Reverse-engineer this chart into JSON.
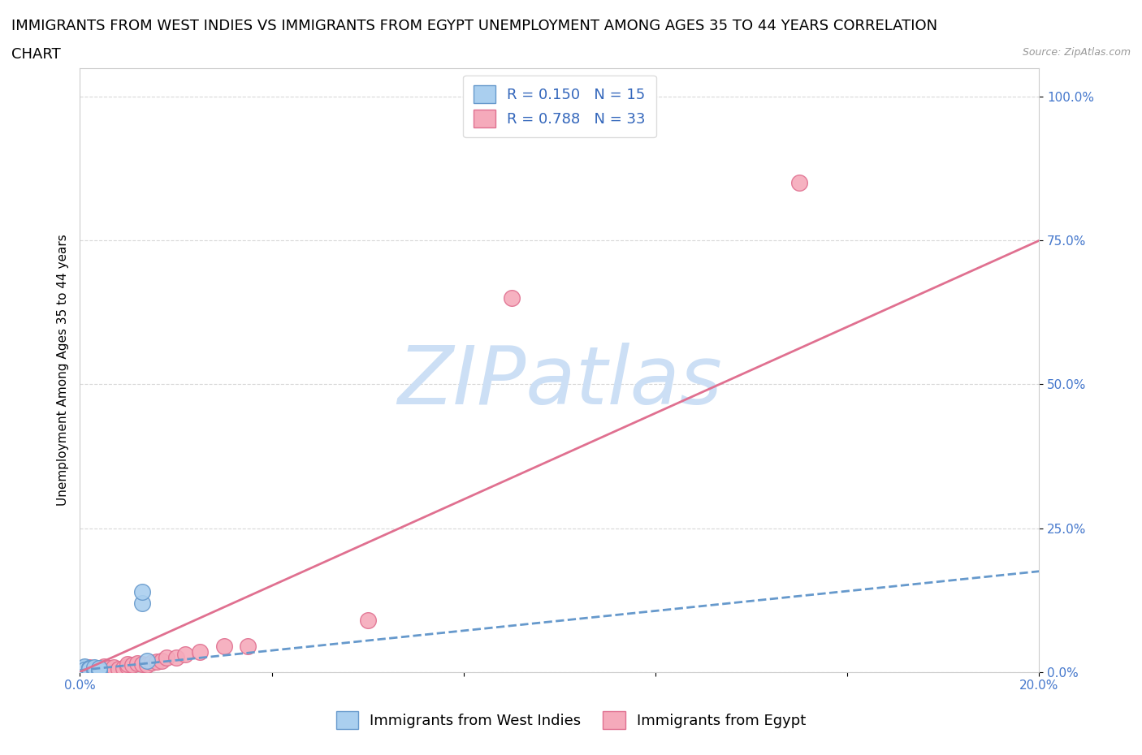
{
  "title_line1": "IMMIGRANTS FROM WEST INDIES VS IMMIGRANTS FROM EGYPT UNEMPLOYMENT AMONG AGES 35 TO 44 YEARS CORRELATION",
  "title_line2": "CHART",
  "source_text": "Source: ZipAtlas.com",
  "ylabel": "Unemployment Among Ages 35 to 44 years",
  "xlim": [
    0.0,
    0.2
  ],
  "ylim": [
    0.0,
    1.05
  ],
  "xticks": [
    0.0,
    0.04,
    0.08,
    0.12,
    0.16,
    0.2
  ],
  "yticks": [
    0.0,
    0.25,
    0.5,
    0.75,
    1.0
  ],
  "west_indies_color": "#aacfef",
  "egypt_color": "#f5aabb",
  "west_indies_edge_color": "#6699cc",
  "egypt_edge_color": "#e07090",
  "trend_west_indies_color": "#6699cc",
  "trend_egypt_color": "#e07090",
  "watermark_color": "#ccdff5",
  "watermark_text": "ZIPatlas",
  "legend_R_west": "R = 0.150",
  "legend_N_west": "N = 15",
  "legend_R_egypt": "R = 0.788",
  "legend_N_egypt": "N = 33",
  "west_indies_x": [
    0.001,
    0.001,
    0.001,
    0.001,
    0.002,
    0.002,
    0.002,
    0.002,
    0.003,
    0.003,
    0.004,
    0.004,
    0.013,
    0.013,
    0.014
  ],
  "west_indies_y": [
    0.005,
    0.008,
    0.01,
    0.004,
    0.003,
    0.006,
    0.007,
    0.005,
    0.004,
    0.008,
    0.003,
    0.006,
    0.12,
    0.14,
    0.02
  ],
  "egypt_x": [
    0.001,
    0.001,
    0.002,
    0.002,
    0.002,
    0.003,
    0.003,
    0.004,
    0.004,
    0.005,
    0.005,
    0.006,
    0.007,
    0.008,
    0.009,
    0.01,
    0.01,
    0.011,
    0.012,
    0.013,
    0.014,
    0.015,
    0.016,
    0.017,
    0.018,
    0.02,
    0.022,
    0.025,
    0.03,
    0.035,
    0.06,
    0.09,
    0.15
  ],
  "egypt_y": [
    0.004,
    0.006,
    0.003,
    0.005,
    0.008,
    0.004,
    0.007,
    0.003,
    0.006,
    0.005,
    0.01,
    0.006,
    0.008,
    0.005,
    0.007,
    0.01,
    0.013,
    0.012,
    0.015,
    0.014,
    0.012,
    0.016,
    0.018,
    0.02,
    0.025,
    0.025,
    0.03,
    0.035,
    0.045,
    0.045,
    0.09,
    0.65,
    0.85
  ],
  "trend_west_line": [
    [
      0.0,
      0.2
    ],
    [
      0.003,
      0.175
    ]
  ],
  "trend_egypt_line": [
    [
      0.0,
      0.2
    ],
    [
      0.0,
      0.75
    ]
  ],
  "background_color": "#ffffff",
  "grid_color": "#d8d8d8",
  "title_fontsize": 13,
  "axis_label_fontsize": 11,
  "tick_fontsize": 11,
  "legend_fontsize": 13,
  "bottom_legend_labels": [
    "Immigrants from West Indies",
    "Immigrants from Egypt"
  ]
}
